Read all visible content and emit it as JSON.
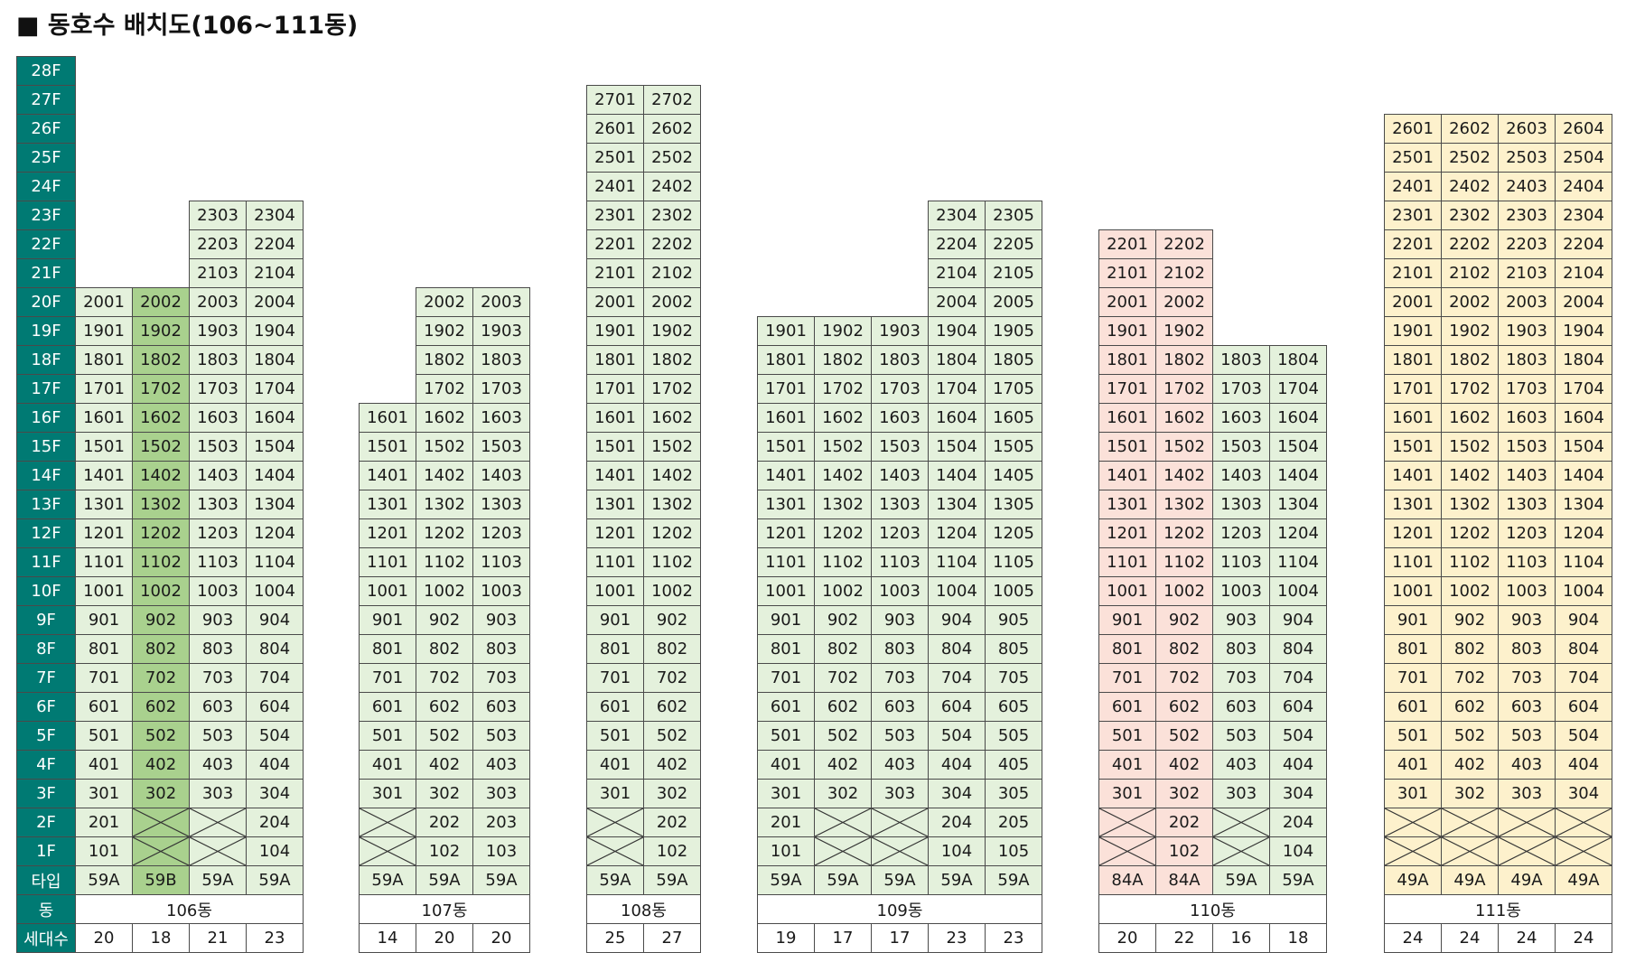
{
  "title": "■ 동호수 배치도(106~111동)",
  "row_labels": {
    "floors": [
      "28F",
      "27F",
      "26F",
      "25F",
      "24F",
      "23F",
      "22F",
      "21F",
      "20F",
      "19F",
      "18F",
      "17F",
      "16F",
      "15F",
      "14F",
      "13F",
      "12F",
      "11F",
      "10F",
      "9F",
      "8F",
      "7F",
      "6F",
      "5F",
      "4F",
      "3F",
      "2F",
      "1F"
    ],
    "type": "타입",
    "building": "동",
    "households": "세대수"
  },
  "colors": {
    "label_bg": "#007a73",
    "green_light": "#e4f1dc",
    "green_medium": "#a9d18e",
    "pink": "#fbe1d9",
    "yellow": "#fdf1cc"
  },
  "buildings": [
    {
      "name": "106동",
      "lines": [
        {
          "top": 20,
          "low": [
            1,
            2
          ],
          "type": "59A",
          "count": "20",
          "color": "green_light"
        },
        {
          "top": 20,
          "low": [],
          "type": "59B",
          "count": "18",
          "color": "green_medium"
        },
        {
          "top": 23,
          "low": [],
          "type": "59A",
          "count": "21",
          "color": "green_light"
        },
        {
          "top": 23,
          "low": [
            1,
            2
          ],
          "type": "59A",
          "count": "23",
          "color": "green_light"
        }
      ]
    },
    {
      "name": "107동",
      "lines": [
        {
          "top": 16,
          "low": [],
          "type": "59A",
          "count": "14",
          "color": "green_light"
        },
        {
          "top": 20,
          "low": [
            1,
            2
          ],
          "type": "59A",
          "count": "20",
          "color": "green_light"
        },
        {
          "top": 20,
          "low": [
            1,
            2
          ],
          "type": "59A",
          "count": "20",
          "color": "green_light"
        }
      ]
    },
    {
      "name": "108동",
      "lines": [
        {
          "top": 27,
          "low": [],
          "type": "59A",
          "count": "25",
          "color": "green_light"
        },
        {
          "top": 27,
          "low": [
            1,
            2
          ],
          "type": "59A",
          "count": "27",
          "color": "green_light"
        }
      ]
    },
    {
      "name": "109동",
      "lines": [
        {
          "top": 19,
          "low": [
            1,
            2
          ],
          "type": "59A",
          "count": "19",
          "color": "green_light"
        },
        {
          "top": 19,
          "low": [],
          "type": "59A",
          "count": "17",
          "color": "green_light"
        },
        {
          "top": 19,
          "low": [],
          "type": "59A",
          "count": "17",
          "color": "green_light"
        },
        {
          "top": 23,
          "low": [
            1,
            2
          ],
          "type": "59A",
          "count": "23",
          "color": "green_light"
        },
        {
          "top": 23,
          "low": [
            1,
            2
          ],
          "type": "59A",
          "count": "23",
          "color": "green_light"
        }
      ]
    },
    {
      "name": "110동",
      "lines": [
        {
          "top": 22,
          "low": [],
          "type": "84A",
          "count": "20",
          "color": "pink"
        },
        {
          "top": 22,
          "low": [
            1,
            2
          ],
          "type": "84A",
          "count": "22",
          "color": "pink"
        },
        {
          "top": 18,
          "low": [],
          "type": "59A",
          "count": "16",
          "color": "green_light"
        },
        {
          "top": 18,
          "low": [
            1,
            2
          ],
          "type": "59A",
          "count": "18",
          "color": "green_light"
        }
      ]
    },
    {
      "name": "111동",
      "lines": [
        {
          "top": 26,
          "low": [],
          "type": "49A",
          "count": "24",
          "color": "yellow"
        },
        {
          "top": 26,
          "low": [],
          "type": "49A",
          "count": "24",
          "color": "yellow"
        },
        {
          "top": 26,
          "low": [],
          "type": "49A",
          "count": "24",
          "color": "yellow"
        },
        {
          "top": 26,
          "low": [],
          "type": "49A",
          "count": "24",
          "color": "yellow"
        }
      ]
    }
  ]
}
